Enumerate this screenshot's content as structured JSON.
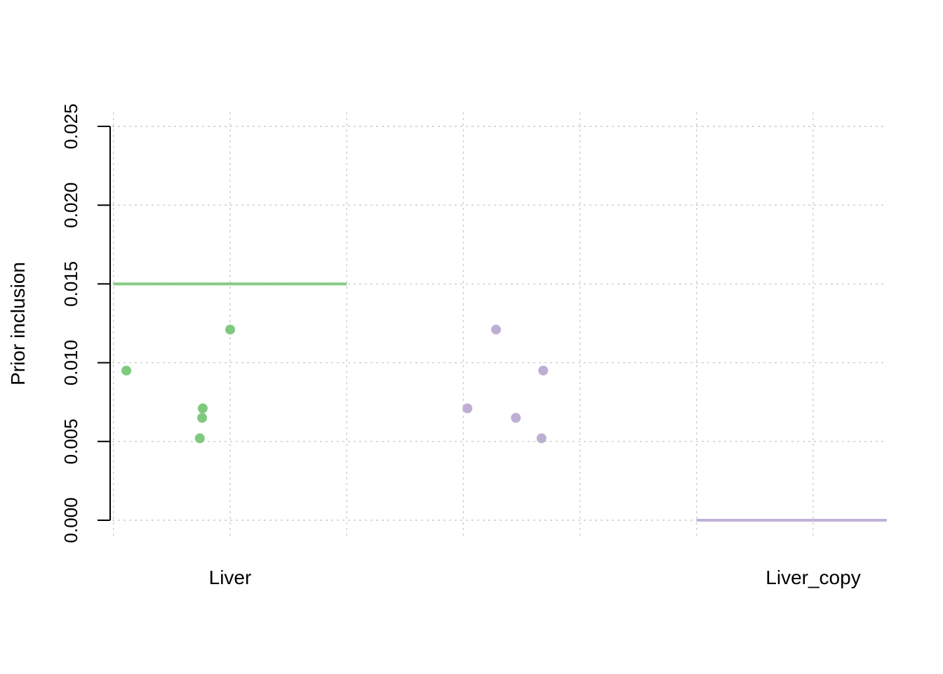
{
  "chart_data": {
    "type": "scatter",
    "title": "",
    "xlabel": "",
    "ylabel": "Prior inclusion",
    "ylim": [
      0,
      0.025
    ],
    "y_ticks": [
      "0.000",
      "0.005",
      "0.010",
      "0.015",
      "0.020",
      "0.025"
    ],
    "categories": [
      "Liver",
      "Liver_copy"
    ],
    "grid": true,
    "series": [
      {
        "category": "Liver",
        "color": "#7fc97f",
        "prior_line": 0.015,
        "points": [
          {
            "x": 0.11,
            "y": 0.0095
          },
          {
            "x": 0.74,
            "y": 0.0052
          },
          {
            "x": 0.76,
            "y": 0.0065
          },
          {
            "x": 0.765,
            "y": 0.0071
          },
          {
            "x": 1.0,
            "y": 0.0121
          }
        ]
      },
      {
        "category": "Liver_copy",
        "color": "#beaed4",
        "prior_line": 0.0,
        "points": [
          {
            "x": 3.035,
            "y": 0.0071
          },
          {
            "x": 3.28,
            "y": 0.0121
          },
          {
            "x": 3.45,
            "y": 0.0065
          },
          {
            "x": 3.67,
            "y": 0.0052
          },
          {
            "x": 3.685,
            "y": 0.0095
          }
        ]
      }
    ]
  }
}
